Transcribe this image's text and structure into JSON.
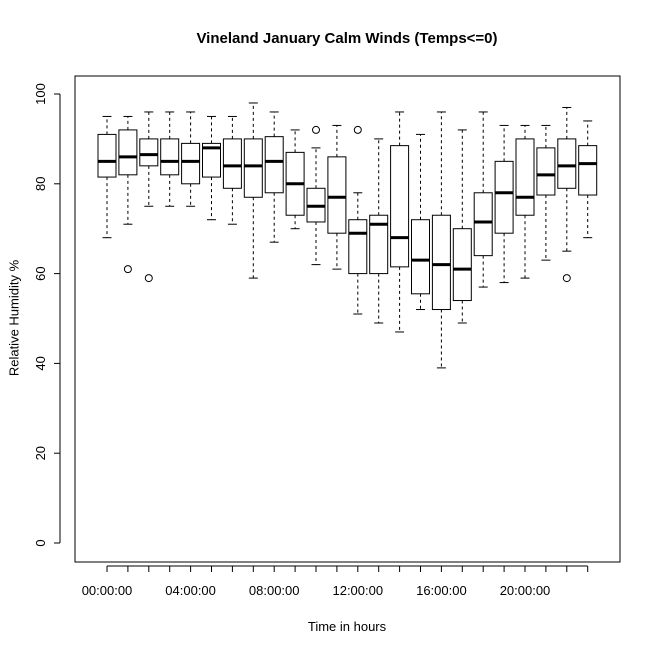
{
  "chart_data": {
    "type": "boxplot",
    "title": "Vineland January Calm Winds (Temps<=0)",
    "xlabel": "Time in hours",
    "ylabel": "Relative Humidity %",
    "ylim": [
      0,
      100
    ],
    "y_ticks": [
      0,
      20,
      40,
      60,
      80,
      100
    ],
    "x_tick_labels": [
      {
        "index": 0,
        "label": "00:00:00"
      },
      {
        "index": 4,
        "label": "04:00:00"
      },
      {
        "index": 8,
        "label": "08:00:00"
      },
      {
        "index": 12,
        "label": "12:00:00"
      },
      {
        "index": 16,
        "label": "16:00:00"
      },
      {
        "index": 20,
        "label": "20:00:00"
      }
    ],
    "grid": false,
    "boxes": [
      {
        "hour": 0,
        "whisker_low": 68,
        "q1": 81.5,
        "median": 85,
        "q3": 91,
        "whisker_high": 95,
        "outliers": []
      },
      {
        "hour": 1,
        "whisker_low": 71,
        "q1": 82,
        "median": 86,
        "q3": 92,
        "whisker_high": 95,
        "outliers": [
          61
        ]
      },
      {
        "hour": 2,
        "whisker_low": 75,
        "q1": 84,
        "median": 86.5,
        "q3": 90,
        "whisker_high": 96,
        "outliers": [
          59
        ]
      },
      {
        "hour": 3,
        "whisker_low": 75,
        "q1": 82,
        "median": 85,
        "q3": 90,
        "whisker_high": 96,
        "outliers": []
      },
      {
        "hour": 4,
        "whisker_low": 75,
        "q1": 80,
        "median": 85,
        "q3": 89,
        "whisker_high": 96,
        "outliers": []
      },
      {
        "hour": 5,
        "whisker_low": 72,
        "q1": 81.5,
        "median": 88,
        "q3": 89,
        "whisker_high": 95,
        "outliers": []
      },
      {
        "hour": 6,
        "whisker_low": 71,
        "q1": 79,
        "median": 84,
        "q3": 90,
        "whisker_high": 95,
        "outliers": []
      },
      {
        "hour": 7,
        "whisker_low": 59,
        "q1": 77,
        "median": 84,
        "q3": 90,
        "whisker_high": 98,
        "outliers": []
      },
      {
        "hour": 8,
        "whisker_low": 67,
        "q1": 78,
        "median": 85,
        "q3": 90.5,
        "whisker_high": 96,
        "outliers": []
      },
      {
        "hour": 9,
        "whisker_low": 70,
        "q1": 73,
        "median": 80,
        "q3": 87,
        "whisker_high": 92,
        "outliers": []
      },
      {
        "hour": 10,
        "whisker_low": 62,
        "q1": 71.5,
        "median": 75,
        "q3": 79,
        "whisker_high": 88,
        "outliers": [
          92
        ]
      },
      {
        "hour": 11,
        "whisker_low": 61,
        "q1": 69,
        "median": 77,
        "q3": 86,
        "whisker_high": 93,
        "outliers": []
      },
      {
        "hour": 12,
        "whisker_low": 51,
        "q1": 60,
        "median": 69,
        "q3": 72,
        "whisker_high": 78,
        "outliers": [
          92
        ]
      },
      {
        "hour": 13,
        "whisker_low": 49,
        "q1": 60,
        "median": 71,
        "q3": 73,
        "whisker_high": 90,
        "outliers": []
      },
      {
        "hour": 14,
        "whisker_low": 47,
        "q1": 61.5,
        "median": 68,
        "q3": 88.5,
        "whisker_high": 96,
        "outliers": []
      },
      {
        "hour": 15,
        "whisker_low": 52,
        "q1": 55.5,
        "median": 63,
        "q3": 72,
        "whisker_high": 91,
        "outliers": []
      },
      {
        "hour": 16,
        "whisker_low": 39,
        "q1": 52,
        "median": 62,
        "q3": 73,
        "whisker_high": 96,
        "outliers": []
      },
      {
        "hour": 17,
        "whisker_low": 49,
        "q1": 54,
        "median": 61,
        "q3": 70,
        "whisker_high": 92,
        "outliers": []
      },
      {
        "hour": 18,
        "whisker_low": 57,
        "q1": 64,
        "median": 71.5,
        "q3": 78,
        "whisker_high": 96,
        "outliers": []
      },
      {
        "hour": 19,
        "whisker_low": 58,
        "q1": 69,
        "median": 78,
        "q3": 85,
        "whisker_high": 93,
        "outliers": []
      },
      {
        "hour": 20,
        "whisker_low": 59,
        "q1": 73,
        "median": 77,
        "q3": 90,
        "whisker_high": 93,
        "outliers": []
      },
      {
        "hour": 21,
        "whisker_low": 63,
        "q1": 77.5,
        "median": 82,
        "q3": 88,
        "whisker_high": 93,
        "outliers": []
      },
      {
        "hour": 22,
        "whisker_low": 65,
        "q1": 79,
        "median": 84,
        "q3": 90,
        "whisker_high": 97,
        "outliers": [
          59
        ]
      },
      {
        "hour": 23,
        "whisker_low": 68,
        "q1": 77.5,
        "median": 84.5,
        "q3": 88.5,
        "whisker_high": 94,
        "outliers": []
      }
    ]
  }
}
